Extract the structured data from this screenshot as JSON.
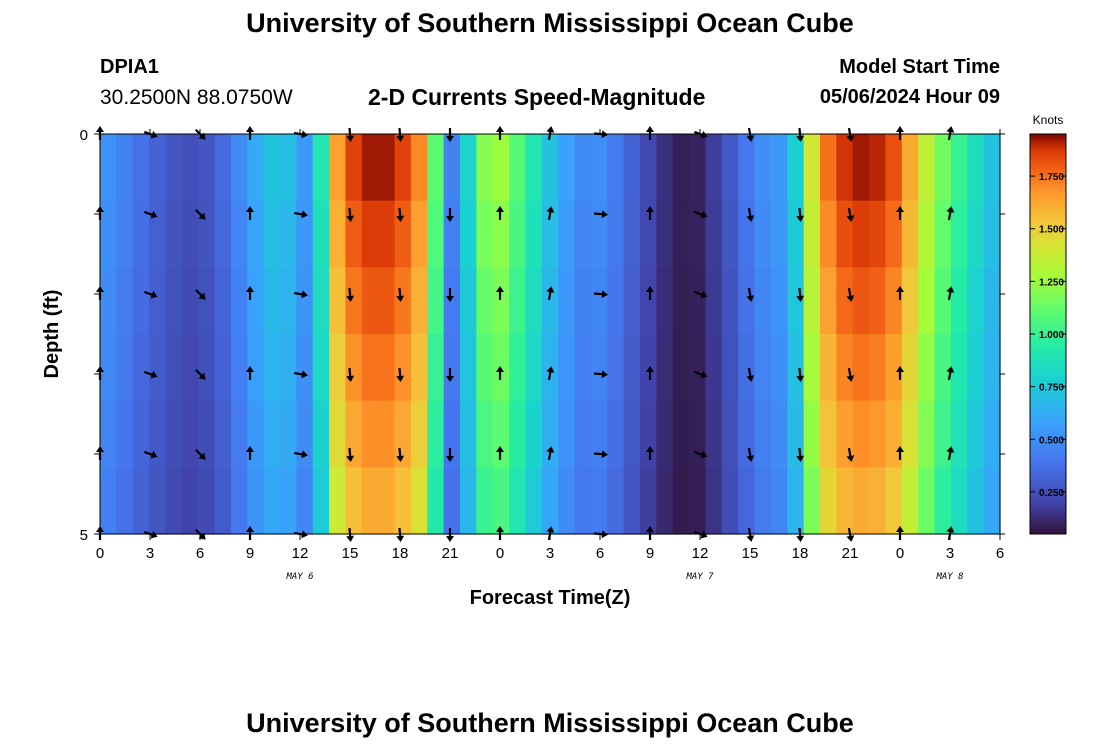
{
  "page": {
    "title": "University of Southern Mississippi Ocean Cube",
    "footer_title": "University of Southern Mississippi Ocean Cube",
    "station": "DPIA1",
    "coordinates": "30.2500N  88.0750W",
    "subtitle": "2-D Currents Speed-Magnitude",
    "model_start_label": "Model Start Time",
    "model_start_time": "05/06/2024 Hour 09"
  },
  "chart_data": {
    "type": "heatmap",
    "title": "2-D Currents Speed-Magnitude",
    "xlabel": "Forecast Time(Z)",
    "ylabel": "Depth (ft)",
    "x_ticks": [
      "0",
      "3",
      "6",
      "9",
      "12",
      "15",
      "18",
      "21",
      "0",
      "3",
      "6",
      "9",
      "12",
      "15",
      "18",
      "21",
      "0",
      "3",
      "6"
    ],
    "x_range_hours": [
      0,
      54
    ],
    "date_labels": [
      {
        "text": "MAY 6",
        "hour": 12
      },
      {
        "text": "MAY 7",
        "hour": 36
      },
      {
        "text": "MAY 8",
        "hour": 51
      }
    ],
    "y_ticks": [
      "0",
      "5"
    ],
    "y_range_ft": [
      0,
      5
    ],
    "depth_levels_ft": [
      0,
      1,
      2,
      3,
      4,
      5
    ],
    "colorbar": {
      "unit": "Knots",
      "min": 0.05,
      "max": 1.95,
      "ticks": [
        "0.250",
        "0.500",
        "0.750",
        "1.000",
        "1.250",
        "1.500",
        "1.750"
      ],
      "tick_values": [
        0.25,
        0.5,
        0.75,
        1.0,
        1.25,
        1.5,
        1.75
      ]
    },
    "speed_knots_by_hour": [
      0.52,
      0.45,
      0.38,
      0.32,
      0.27,
      0.24,
      0.27,
      0.35,
      0.48,
      0.62,
      0.72,
      0.7,
      0.55,
      0.9,
      1.65,
      1.85,
      1.92,
      1.92,
      1.85,
      1.7,
      1.1,
      0.45,
      0.8,
      1.2,
      1.25,
      1.08,
      0.9,
      0.72,
      0.58,
      0.48,
      0.5,
      0.42,
      0.32,
      0.22,
      0.14,
      0.09,
      0.1,
      0.18,
      0.28,
      0.4,
      0.5,
      0.55,
      0.78,
      1.4,
      1.75,
      1.88,
      1.92,
      1.9,
      1.82,
      1.62,
      1.35,
      1.15,
      1.0,
      0.85,
      0.72
    ],
    "depth_factor": [
      1.0,
      0.97,
      0.94,
      0.91,
      0.88,
      0.84
    ],
    "vector_directions_deg_by_hour": [
      {
        "hour": 0,
        "dir": 0
      },
      {
        "hour": 3,
        "dir": 110
      },
      {
        "hour": 6,
        "dir": 135
      },
      {
        "hour": 9,
        "dir": 0
      },
      {
        "hour": 12,
        "dir": 100
      },
      {
        "hour": 15,
        "dir": 175
      },
      {
        "hour": 18,
        "dir": 175
      },
      {
        "hour": 21,
        "dir": 180
      },
      {
        "hour": 24,
        "dir": 0
      },
      {
        "hour": 27,
        "dir": 10
      },
      {
        "hour": 30,
        "dir": 95
      },
      {
        "hour": 33,
        "dir": 0
      },
      {
        "hour": 36,
        "dir": 110
      },
      {
        "hour": 39,
        "dir": 170
      },
      {
        "hour": 42,
        "dir": 175
      },
      {
        "hour": 45,
        "dir": 170
      },
      {
        "hour": 48,
        "dir": 0
      },
      {
        "hour": 51,
        "dir": 10
      }
    ]
  }
}
